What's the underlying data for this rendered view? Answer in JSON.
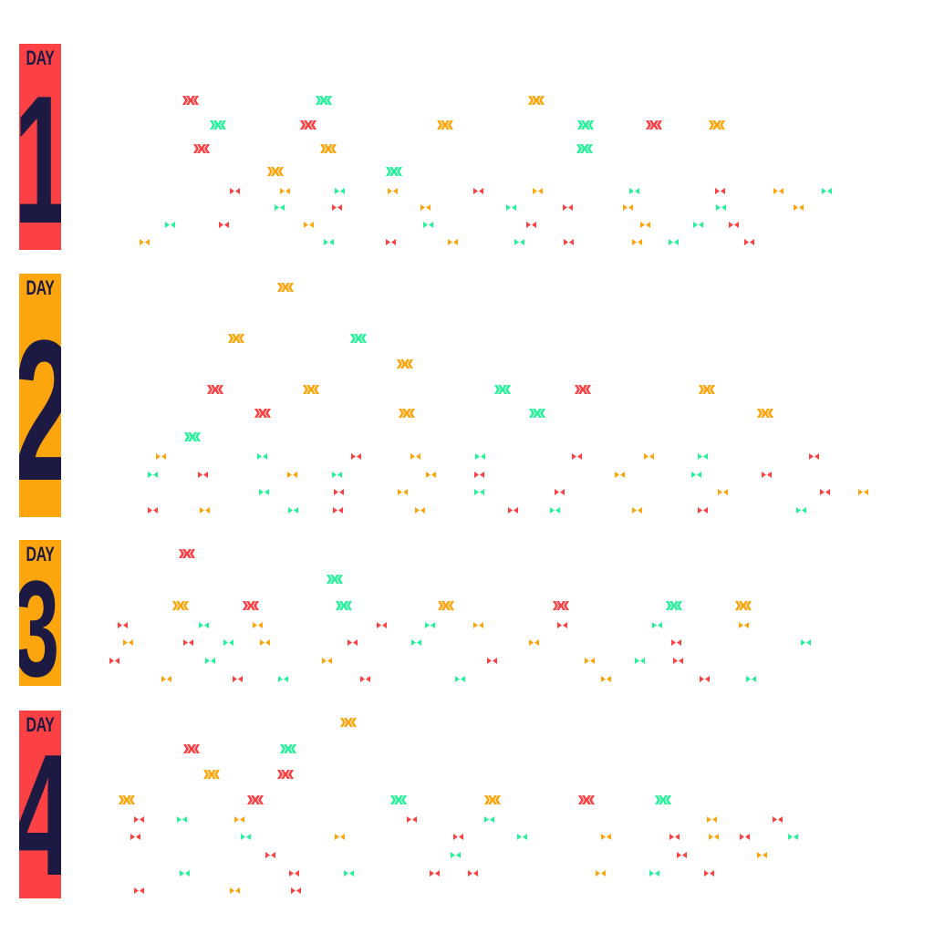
{
  "colors": {
    "red": "#fb4144",
    "orange": "#fca50d",
    "green": "#26f29a",
    "navy": "#1c1a42"
  },
  "days": [
    {
      "label": "DAY",
      "number": "1",
      "color": "red",
      "big": [
        [
          "red",
          209,
          110
        ],
        [
          "green",
          355,
          110
        ],
        [
          "orange",
          588,
          110
        ],
        [
          "green",
          239,
          137
        ],
        [
          "red",
          338,
          137
        ],
        [
          "orange",
          488,
          137
        ],
        [
          "green",
          642,
          137
        ],
        [
          "red",
          717,
          137
        ],
        [
          "orange",
          786,
          137
        ],
        [
          "red",
          221,
          163
        ],
        [
          "orange",
          360,
          163
        ],
        [
          "green",
          641,
          163
        ],
        [
          "orange",
          302,
          188
        ],
        [
          "green",
          432,
          188
        ]
      ],
      "small": [
        [
          "red",
          257,
          210
        ],
        [
          "orange",
          312,
          210
        ],
        [
          "green",
          372,
          210
        ],
        [
          "orange",
          430,
          210
        ],
        [
          "red",
          524,
          210
        ],
        [
          "orange",
          589,
          210
        ],
        [
          "green",
          695,
          210
        ],
        [
          "red",
          789,
          210
        ],
        [
          "orange",
          853,
          210
        ],
        [
          "green",
          906,
          210
        ],
        [
          "green",
          306,
          228
        ],
        [
          "red",
          369,
          228
        ],
        [
          "orange",
          466,
          228
        ],
        [
          "green",
          560,
          228
        ],
        [
          "red",
          622,
          228
        ],
        [
          "orange",
          688,
          228
        ],
        [
          "green",
          790,
          228
        ],
        [
          "orange",
          875,
          228
        ],
        [
          "green",
          186,
          247
        ],
        [
          "red",
          245,
          247
        ],
        [
          "orange",
          338,
          247
        ],
        [
          "green",
          469,
          247
        ],
        [
          "red",
          582,
          247
        ],
        [
          "orange",
          707,
          247
        ],
        [
          "green",
          765,
          247
        ],
        [
          "red",
          804,
          247
        ],
        [
          "orange",
          158,
          266
        ],
        [
          "green",
          360,
          266
        ],
        [
          "red",
          428,
          266
        ],
        [
          "orange",
          496,
          266
        ],
        [
          "green",
          569,
          266
        ],
        [
          "red",
          623,
          266
        ],
        [
          "orange",
          698,
          266
        ],
        [
          "green",
          738,
          266
        ],
        [
          "red",
          821,
          266
        ]
      ]
    },
    {
      "label": "DAY",
      "number": "2",
      "color": "orange",
      "big": [
        [
          "orange",
          313,
          315
        ],
        [
          "orange",
          259,
          371
        ],
        [
          "green",
          393,
          371
        ],
        [
          "orange",
          444,
          399
        ],
        [
          "red",
          236,
          427
        ],
        [
          "orange",
          341,
          427
        ],
        [
          "green",
          551,
          427
        ],
        [
          "red",
          639,
          427
        ],
        [
          "orange",
          775,
          427
        ],
        [
          "red",
          288,
          453
        ],
        [
          "orange",
          446,
          453
        ],
        [
          "green",
          589,
          453
        ],
        [
          "orange",
          839,
          453
        ],
        [
          "green",
          211,
          479
        ]
      ],
      "small": [
        [
          "orange",
          176,
          501
        ],
        [
          "green",
          287,
          501
        ],
        [
          "red",
          390,
          501
        ],
        [
          "orange",
          455,
          501
        ],
        [
          "green",
          526,
          501
        ],
        [
          "red",
          632,
          501
        ],
        [
          "orange",
          711,
          501
        ],
        [
          "green",
          770,
          501
        ],
        [
          "red",
          892,
          501
        ],
        [
          "green",
          167,
          521
        ],
        [
          "red",
          222,
          521
        ],
        [
          "orange",
          320,
          521
        ],
        [
          "green",
          369,
          521
        ],
        [
          "orange",
          472,
          521
        ],
        [
          "red",
          525,
          521
        ],
        [
          "orange",
          679,
          521
        ],
        [
          "green",
          763,
          521
        ],
        [
          "red",
          840,
          521
        ],
        [
          "green",
          289,
          540
        ],
        [
          "red",
          371,
          540
        ],
        [
          "orange",
          441,
          540
        ],
        [
          "green",
          525,
          540
        ],
        [
          "red",
          613,
          540
        ],
        [
          "orange",
          792,
          540
        ],
        [
          "red",
          904,
          540
        ],
        [
          "orange",
          946,
          540
        ],
        [
          "red",
          167,
          560
        ],
        [
          "orange",
          224,
          560
        ],
        [
          "green",
          321,
          560
        ],
        [
          "red",
          370,
          560
        ],
        [
          "orange",
          460,
          560
        ],
        [
          "red",
          562,
          560
        ],
        [
          "green",
          608,
          560
        ],
        [
          "orange",
          698,
          560
        ],
        [
          "red",
          770,
          560
        ],
        [
          "green",
          878,
          560
        ]
      ]
    },
    {
      "label": "DAY",
      "number": "3",
      "color": "orange",
      "big": [
        [
          "red",
          205,
          607
        ],
        [
          "green",
          367,
          635
        ],
        [
          "orange",
          198,
          664
        ],
        [
          "red",
          275,
          664
        ],
        [
          "green",
          377,
          664
        ],
        [
          "orange",
          489,
          664
        ],
        [
          "red",
          615,
          664
        ],
        [
          "green",
          739,
          664
        ],
        [
          "orange",
          815,
          664
        ]
      ],
      "small": [
        [
          "red",
          134,
          686
        ],
        [
          "green",
          223,
          686
        ],
        [
          "orange",
          282,
          686
        ],
        [
          "red",
          418,
          686
        ],
        [
          "green",
          471,
          686
        ],
        [
          "orange",
          524,
          686
        ],
        [
          "red",
          616,
          686
        ],
        [
          "green",
          720,
          686
        ],
        [
          "orange",
          815,
          686
        ],
        [
          "orange",
          140,
          705
        ],
        [
          "red",
          206,
          705
        ],
        [
          "green",
          250,
          705
        ],
        [
          "orange",
          290,
          705
        ],
        [
          "red",
          386,
          705
        ],
        [
          "green",
          456,
          705
        ],
        [
          "orange",
          585,
          705
        ],
        [
          "red",
          741,
          705
        ],
        [
          "green",
          883,
          705
        ],
        [
          "red",
          125,
          725
        ],
        [
          "green",
          230,
          725
        ],
        [
          "orange",
          358,
          725
        ],
        [
          "red",
          539,
          725
        ],
        [
          "orange",
          646,
          725
        ],
        [
          "green",
          701,
          725
        ],
        [
          "red",
          743,
          725
        ],
        [
          "orange",
          182,
          745
        ],
        [
          "red",
          260,
          745
        ],
        [
          "green",
          310,
          745
        ],
        [
          "red",
          400,
          745
        ],
        [
          "green",
          504,
          745
        ],
        [
          "orange",
          664,
          745
        ],
        [
          "red",
          772,
          745
        ],
        [
          "green",
          823,
          745
        ]
      ]
    },
    {
      "label": "DAY",
      "number": "4",
      "color": "red",
      "big": [
        [
          "orange",
          382,
          792
        ],
        [
          "red",
          210,
          821
        ],
        [
          "green",
          316,
          821
        ],
        [
          "orange",
          232,
          849
        ],
        [
          "red",
          313,
          849
        ],
        [
          "orange",
          139,
          877
        ],
        [
          "red",
          280,
          877
        ],
        [
          "green",
          437,
          877
        ],
        [
          "orange",
          540,
          877
        ],
        [
          "red",
          643,
          877
        ],
        [
          "green",
          727,
          877
        ]
      ],
      "small": [
        [
          "red",
          152,
          899
        ],
        [
          "green",
          199,
          899
        ],
        [
          "orange",
          262,
          899
        ],
        [
          "red",
          451,
          899
        ],
        [
          "green",
          536,
          899
        ],
        [
          "orange",
          780,
          899
        ],
        [
          "red",
          852,
          899
        ],
        [
          "red",
          148,
          918
        ],
        [
          "green",
          269,
          918
        ],
        [
          "orange",
          372,
          918
        ],
        [
          "red",
          502,
          918
        ],
        [
          "green",
          572,
          918
        ],
        [
          "orange",
          664,
          918
        ],
        [
          "red",
          739,
          918
        ],
        [
          "orange",
          782,
          918
        ],
        [
          "red",
          816,
          918
        ],
        [
          "green",
          869,
          918
        ],
        [
          "red",
          296,
          938
        ],
        [
          "green",
          499,
          938
        ],
        [
          "red",
          747,
          938
        ],
        [
          "orange",
          835,
          938
        ],
        [
          "green",
          202,
          958
        ],
        [
          "red",
          322,
          958
        ],
        [
          "green",
          382,
          958
        ],
        [
          "red",
          476,
          958
        ],
        [
          "red",
          518,
          958
        ],
        [
          "orange",
          658,
          958
        ],
        [
          "green",
          717,
          958
        ],
        [
          "red",
          777,
          958
        ],
        [
          "red",
          152,
          977
        ],
        [
          "orange",
          257,
          977
        ],
        [
          "red",
          324,
          977
        ]
      ]
    }
  ]
}
